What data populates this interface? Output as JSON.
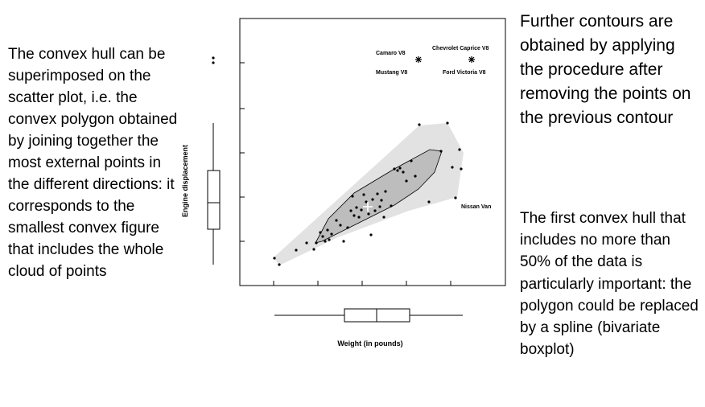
{
  "left_text": "The convex hull can be superimposed on the scatter plot, i.e. the convex polygon obtained by joining together the most external points in the different directions: it corresponds to the smallest convex figure that includes the whole cloud of points",
  "right_text_top": "Further contours are obtained by applying the procedure after removing the points on the previous contour",
  "right_text_bottom": "The first convex hull that includes no more than 50% of the data is particularly important: the polygon could be replaced by a spline (bivariate boxplot)",
  "chart_data": {
    "type": "scatter",
    "xlabel": "Weight (in pounds)",
    "ylabel": "Engine displacement",
    "annotations": [
      "Camaro V8",
      "Mustang V8",
      "Chevrolet Caprice V8",
      "Ford Victoria V8",
      "Nissan Van"
    ],
    "hull_outer": {
      "fill": "#e2e2e2"
    },
    "hull_inner": {
      "fill": "#bdbdbd"
    },
    "median_marker": "plus",
    "boxplots": [
      "x-marginal",
      "y-marginal"
    ]
  }
}
